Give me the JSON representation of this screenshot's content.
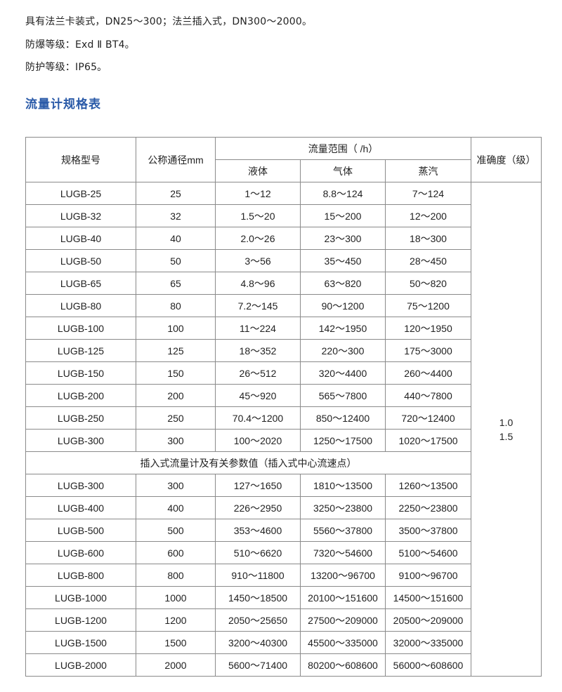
{
  "intro": [
    "具有法兰卡装式，DN25～300；法兰插入式，DN300～2000。",
    "防爆等级：Exd Ⅱ BT4。",
    "防护等级：IP65。"
  ],
  "section_title": "流量计规格表",
  "table": {
    "headers": {
      "model": "规格型号",
      "diameter": "公称通径mm",
      "flow_range": "流量范围（    /h）",
      "liquid": "液体",
      "gas": "气体",
      "steam": "蒸汽",
      "accuracy": "准确度（级）"
    },
    "accuracy_values": [
      "1.0",
      "1.5"
    ],
    "flange_rows": [
      [
        "LUGB-25",
        "25",
        "1～12",
        "8.8～124",
        "7～124"
      ],
      [
        "LUGB-32",
        "32",
        "1.5～20",
        "15～200",
        "12～200"
      ],
      [
        "LUGB-40",
        "40",
        "2.0～26",
        "23～300",
        "18～300"
      ],
      [
        "LUGB-50",
        "50",
        "3～56",
        "35～450",
        "28～450"
      ],
      [
        "LUGB-65",
        "65",
        "4.8～96",
        "63～820",
        "50～820"
      ],
      [
        "LUGB-80",
        "80",
        "7.2～145",
        "90～1200",
        "75～1200"
      ],
      [
        "LUGB-100",
        "100",
        "11～224",
        "142～1950",
        "120～1950"
      ],
      [
        "LUGB-125",
        "125",
        "18～352",
        "220～300",
        "175～3000"
      ],
      [
        "LUGB-150",
        "150",
        "26～512",
        "320～4400",
        "260～4400"
      ],
      [
        "LUGB-200",
        "200",
        "45～920",
        "565～7800",
        "440～7800"
      ],
      [
        "LUGB-250",
        "250",
        "70.4～1200",
        "850～12400",
        "720～12400"
      ],
      [
        "LUGB-300",
        "300",
        "100～2020",
        "1250～17500",
        "1020～17500"
      ]
    ],
    "insert_caption": "插入式流量计及有关参数值（插入式中心流速点）",
    "insert_rows": [
      [
        "LUGB-300",
        "300",
        "127～1650",
        "1810～13500",
        "1260～13500"
      ],
      [
        "LUGB-400",
        "400",
        "226～2950",
        "3250～23800",
        "2250～23800"
      ],
      [
        "LUGB-500",
        "500",
        "353～4600",
        "5560～37800",
        "3500～37800"
      ],
      [
        "LUGB-600",
        "600",
        "510～6620",
        "7320～54600",
        "5100～54600"
      ],
      [
        "LUGB-800",
        "800",
        "910～11800",
        "13200～96700",
        "9100～96700"
      ],
      [
        "LUGB-1000",
        "1000",
        "1450～18500",
        "20100～151600",
        "14500～151600"
      ],
      [
        "LUGB-1200",
        "1200",
        "2050～25650",
        "27500～209000",
        "20500～209000"
      ],
      [
        "LUGB-1500",
        "1500",
        "3200～40300",
        "45500～335000",
        "32000～335000"
      ],
      [
        "LUGB-2000",
        "2000",
        "5600～71400",
        "80200～608600",
        "56000～608600"
      ]
    ]
  }
}
